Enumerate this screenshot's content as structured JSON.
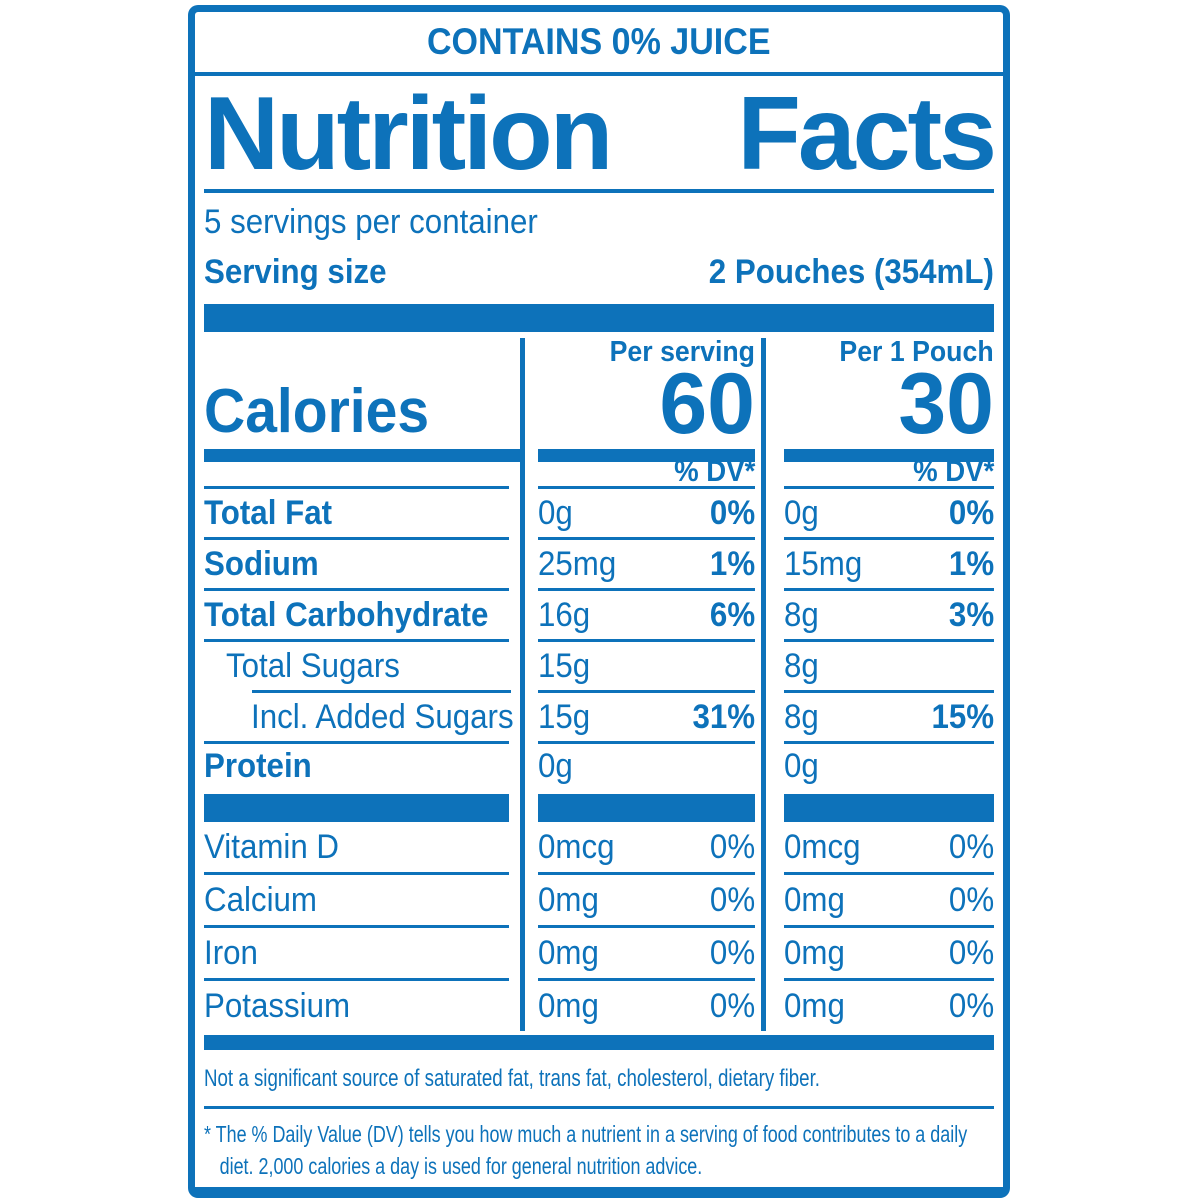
{
  "colors": {
    "brand_blue": "#0d72ba"
  },
  "banner": {
    "text": "CONTAINS 0% JUICE"
  },
  "header": {
    "title": "Nutrition Facts",
    "title_words": [
      "Nutrition",
      "Facts"
    ],
    "servings_per_container": "5 servings per container",
    "serving_size_label": "Serving size",
    "serving_size_value": "2 Pouches (354mL)"
  },
  "calories": {
    "label": "Calories",
    "per_serving_label": "Per serving",
    "per_serving_value": "60",
    "per_pouch_label": "Per 1 Pouch",
    "per_pouch_value": "30",
    "dv_header": "% DV*"
  },
  "nutrients": [
    {
      "label": "Total Fat",
      "serving": {
        "amount": "0g",
        "dv": "0%"
      },
      "pouch": {
        "amount": "0g",
        "dv": "0%"
      }
    },
    {
      "label": "Sodium",
      "serving": {
        "amount": "25mg",
        "dv": "1%"
      },
      "pouch": {
        "amount": "15mg",
        "dv": "1%"
      }
    },
    {
      "label": "Total Carbohydrate",
      "serving": {
        "amount": "16g",
        "dv": "6%"
      },
      "pouch": {
        "amount": "8g",
        "dv": "3%"
      }
    },
    {
      "label": "Total Sugars",
      "serving": {
        "amount": "15g",
        "dv": ""
      },
      "pouch": {
        "amount": "8g",
        "dv": ""
      }
    },
    {
      "label": "Incl. Added Sugars",
      "serving": {
        "amount": "15g",
        "dv": "31%"
      },
      "pouch": {
        "amount": "8g",
        "dv": "15%"
      }
    },
    {
      "label": "Protein",
      "serving": {
        "amount": "0g",
        "dv": ""
      },
      "pouch": {
        "amount": "0g",
        "dv": ""
      }
    }
  ],
  "vitamins": [
    {
      "label": "Vitamin D",
      "serving": {
        "amount": "0mcg",
        "dv": "0%"
      },
      "pouch": {
        "amount": "0mcg",
        "dv": "0%"
      }
    },
    {
      "label": "Calcium",
      "serving": {
        "amount": "0mg",
        "dv": "0%"
      },
      "pouch": {
        "amount": "0mg",
        "dv": "0%"
      }
    },
    {
      "label": "Iron",
      "serving": {
        "amount": "0mg",
        "dv": "0%"
      },
      "pouch": {
        "amount": "0mg",
        "dv": "0%"
      }
    },
    {
      "label": "Potassium",
      "serving": {
        "amount": "0mg",
        "dv": "0%"
      },
      "pouch": {
        "amount": "0mg",
        "dv": "0%"
      }
    }
  ],
  "footer": {
    "not_significant": "Not a significant source of saturated fat, trans fat, cholesterol, dietary fiber.",
    "dv_note": "* The % Daily Value (DV) tells you how much a nutrient in a serving of food contributes to a daily diet. 2,000 calories a day is used for general nutrition advice."
  }
}
